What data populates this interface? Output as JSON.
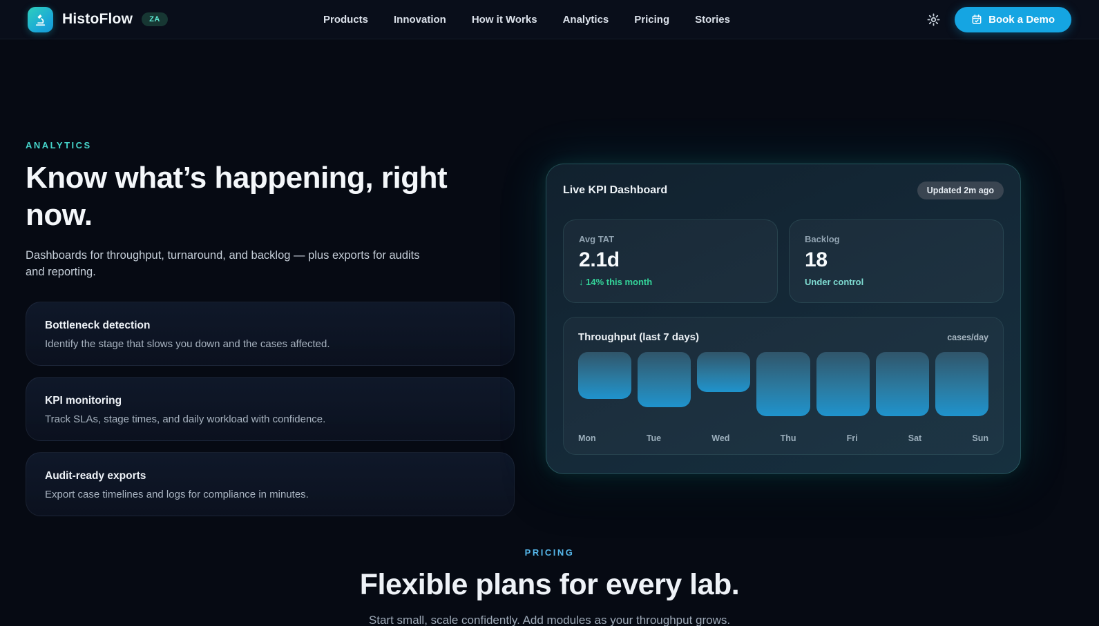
{
  "brand": {
    "name": "HistoFlow",
    "badge": "ZA"
  },
  "nav": {
    "items": [
      {
        "label": "Products"
      },
      {
        "label": "Innovation"
      },
      {
        "label": "How it Works"
      },
      {
        "label": "Analytics"
      },
      {
        "label": "Pricing"
      },
      {
        "label": "Stories"
      }
    ],
    "book_demo_label": "Book a Demo"
  },
  "analytics_section": {
    "eyebrow": "ANALYTICS",
    "title": "Know what’s happening, right now.",
    "subtitle": "Dashboards for throughput, turnaround, and backlog — plus exports for audits and reporting.",
    "features": [
      {
        "title": "Bottleneck detection",
        "description": "Identify the stage that slows you down and the cases affected."
      },
      {
        "title": "KPI monitoring",
        "description": "Track SLAs, stage times, and daily workload with confidence."
      },
      {
        "title": "Audit-ready exports",
        "description": "Export case timelines and logs for compliance in minutes."
      }
    ]
  },
  "dashboard": {
    "title": "Live KPI Dashboard",
    "updated_badge": "Updated 2m ago",
    "kpis": [
      {
        "label": "Avg TAT",
        "value": "2.1d",
        "delta": "↓ 14% this month"
      },
      {
        "label": "Backlog",
        "value": "18",
        "delta": "Under control"
      }
    ]
  },
  "chart_data": {
    "type": "bar",
    "title": "Throughput (last 7 days)",
    "ylabel": "cases/day",
    "categories": [
      "Mon",
      "Tue",
      "Wed",
      "Thu",
      "Fri",
      "Sat",
      "Sun"
    ],
    "values": [
      68,
      80,
      58,
      93,
      93,
      93,
      93
    ],
    "note": "No numeric axis shown; values are relative bar lengths in px, bars anchored to top of plot area",
    "legend": "none",
    "grid": "off"
  },
  "pricing_section": {
    "eyebrow": "PRICING",
    "title": "Flexible plans for every lab.",
    "subtitle": "Start small, scale confidently. Add modules as your throughput grows."
  },
  "icons": {
    "logo": "microscope-icon",
    "settings": "gear-icon",
    "demo_button": "calendar-check-icon",
    "kpi_trend": "down-arrow (in delta text)"
  },
  "colors": {
    "page_bg": "#060a13",
    "accent_teal": "#5eead4",
    "analytics_eyebrow": "#46d6cc",
    "pricing_eyebrow": "#55b6e9",
    "cta_blue": "#15a5e2",
    "delta_green": "#34d399",
    "delta_teal": "#7fdcd2",
    "bar_gradient_top": "#30556a",
    "bar_gradient_bottom": "#1f93cd",
    "panel_border": "rgba(94,234,212,0.22)"
  }
}
